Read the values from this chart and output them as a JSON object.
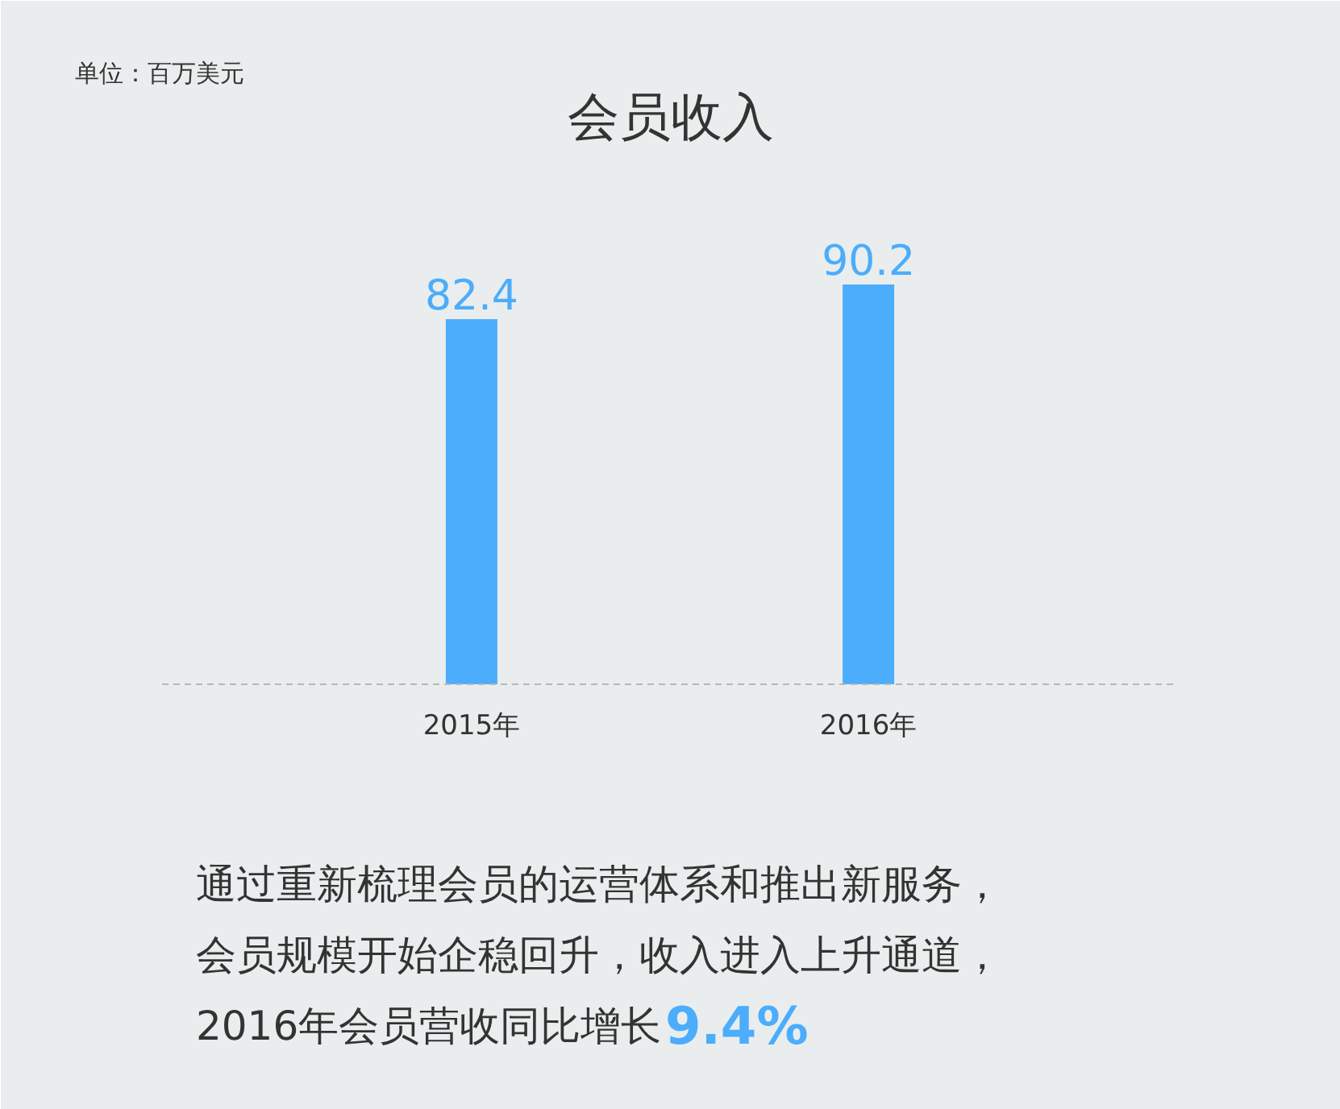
{
  "chart_data": {
    "type": "bar",
    "title": "会员收入",
    "categories": [
      "2015年",
      "2016年"
    ],
    "values": [
      82.4,
      90.2
    ],
    "color": "#4badfb",
    "data_labels": true,
    "grid": false,
    "tick_labels": "x",
    "annotations": [
      "单位：百万美元",
      "通过重新梳理会员的运营体系和推出新服务，",
      "会员规模开始企稳回升，收入进入上升通道，",
      "2016年会员营收同比增长",
      "9.4%"
    ]
  }
}
